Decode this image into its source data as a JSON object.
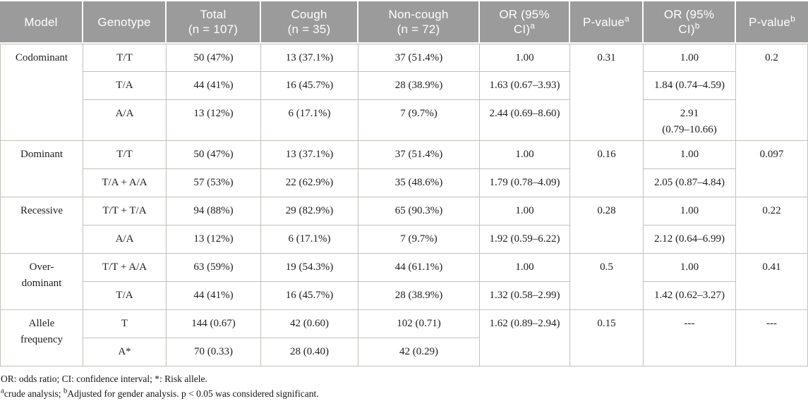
{
  "colors": {
    "header_bg": "#9b9b9b",
    "header_text": "#ffffff",
    "border": "#c5c0ba",
    "body_text": "#1d1d1d",
    "footnote_text": "#141414"
  },
  "table": {
    "header": [
      {
        "key": "model",
        "line1": "Model"
      },
      {
        "key": "genotype",
        "line1": "Genotype"
      },
      {
        "key": "total",
        "line1": "Total",
        "line2": "(n = 107)"
      },
      {
        "key": "cough",
        "line1": "Cough",
        "line2": "(n = 35)"
      },
      {
        "key": "noncough",
        "line1": "Non-cough",
        "line2": "(n = 72)"
      },
      {
        "key": "or-crude",
        "line1": "OR (95%",
        "line2": "CI)",
        "sup": "a"
      },
      {
        "key": "p-crude",
        "line1": "P-value",
        "sup": "a"
      },
      {
        "key": "or-adjusted",
        "line1": "OR (95%",
        "line2": "CI)",
        "sup": "b"
      },
      {
        "key": "p-adjusted",
        "line1": "P-value",
        "sup": "b"
      }
    ],
    "blocks": [
      {
        "model_lines": [
          "Codominant"
        ],
        "rows": [
          {
            "genotype": "T/T",
            "total": "50 (47%)",
            "cough": "13 (37.1%)",
            "noncough": "37 (51.4%)",
            "or_a": "1.00",
            "or_b": "1.00"
          },
          {
            "genotype": "T/A",
            "total": "44 (41%)",
            "cough": "16 (45.7%)",
            "noncough": "28 (38.9%)",
            "or_a": "1.63 (0.67–3.93)",
            "or_b": "1.84 (0.74–4.59)"
          },
          {
            "genotype": "A/A",
            "total": "13 (12%)",
            "cough": "6 (17.1%)",
            "noncough": "7 (9.7%)",
            "or_a": "2.44 (0.69–8.60)",
            "or_b": "2.91\n(0.79–10.66)",
            "tall": true
          }
        ],
        "p_a": "0.31",
        "p_b": "0.2"
      },
      {
        "model_lines": [
          "Dominant"
        ],
        "rows": [
          {
            "genotype": "T/T",
            "total": "50 (47%)",
            "cough": "13 (37.1%)",
            "noncough": "37 (51.4%)",
            "or_a": "1.00",
            "or_b": "1.00"
          },
          {
            "genotype": "T/A + A/A",
            "total": "57 (53%)",
            "cough": "22 (62.9%)",
            "noncough": "35 (48.6%)",
            "or_a": "1.79 (0.78–4.09)",
            "or_b": "2.05 (0.87–4.84)"
          }
        ],
        "p_a": "0.16",
        "p_b": "0.097"
      },
      {
        "model_lines": [
          "Recessive"
        ],
        "rows": [
          {
            "genotype": "T/T + T/A",
            "total": "94 (88%)",
            "cough": "29 (82.9%)",
            "noncough": "65 (90.3%)",
            "or_a": "1.00",
            "or_b": "1.00"
          },
          {
            "genotype": "A/A",
            "total": "13 (12%)",
            "cough": "6 (17.1%)",
            "noncough": "7 (9.7%)",
            "or_a": "1.92 (0.59–6.22)",
            "or_b": "2.12 (0.64–6.99)"
          }
        ],
        "p_a": "0.28",
        "p_b": "0.22"
      },
      {
        "model_lines": [
          "Over-",
          "dominant"
        ],
        "rows": [
          {
            "genotype": "T/T + A/A",
            "total": "63 (59%)",
            "cough": "19 (54.3%)",
            "noncough": "44 (61.1%)",
            "or_a": "1.00",
            "or_b": "1.00"
          },
          {
            "genotype": "T/A",
            "total": "44 (41%)",
            "cough": "16 (45.7%)",
            "noncough": "28 (38.9%)",
            "or_a": "1.32 (0.58–2.99)",
            "or_b": "1.42 (0.62–3.27)"
          }
        ],
        "p_a": "0.5",
        "p_b": "0.41"
      },
      {
        "model_lines": [
          "Allele",
          "frequency"
        ],
        "rows": [
          {
            "genotype": "T",
            "total": "144 (0.67)",
            "cough": "42 (0.60)",
            "noncough": "102 (0.71)"
          },
          {
            "genotype": "A*",
            "total": "70 (0.33)",
            "cough": "28 (0.40)",
            "noncough": "42 (0.29)"
          }
        ],
        "or_a_span": "1.62 (0.89–2.94)",
        "p_a": "0.15",
        "or_b_span": "---",
        "p_b": "---"
      }
    ]
  },
  "footnotes": {
    "line1": "OR: odds ratio; CI: confidence interval; *: Risk allele.",
    "line2_parts": [
      {
        "sup": "a"
      },
      {
        "text": "crude analysis; "
      },
      {
        "sup": "b"
      },
      {
        "text": "Adjusted for gender analysis. p < 0.05 was considered significant."
      }
    ]
  }
}
